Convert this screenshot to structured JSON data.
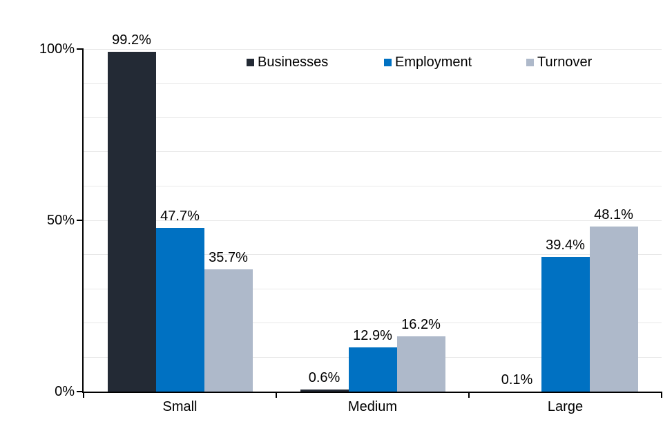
{
  "chart_data": {
    "type": "bar",
    "categories": [
      "Small",
      "Medium",
      "Large"
    ],
    "series": [
      {
        "name": "Businesses",
        "color": "#232A35",
        "values": [
          99.2,
          0.6,
          0.1
        ]
      },
      {
        "name": "Employment",
        "color": "#0071C2",
        "values": [
          47.7,
          12.9,
          39.4
        ]
      },
      {
        "name": "Turnover",
        "color": "#AEB9CA",
        "values": [
          35.7,
          16.2,
          48.1
        ]
      }
    ],
    "value_label_suffix": "%",
    "title": "",
    "xlabel": "",
    "ylabel": "",
    "ylim": [
      0,
      100
    ],
    "y_ticks": [
      {
        "value": 0,
        "label": "0%"
      },
      {
        "value": 50,
        "label": "50%"
      },
      {
        "value": 100,
        "label": "100%"
      }
    ],
    "gridline_step": 10,
    "grid": true,
    "legend_position": "top-inside"
  },
  "styles": {
    "background": "#FFFFFF",
    "axis_color": "#000000",
    "gridline_color": "#E8E8E8",
    "text_color": "#000000"
  }
}
